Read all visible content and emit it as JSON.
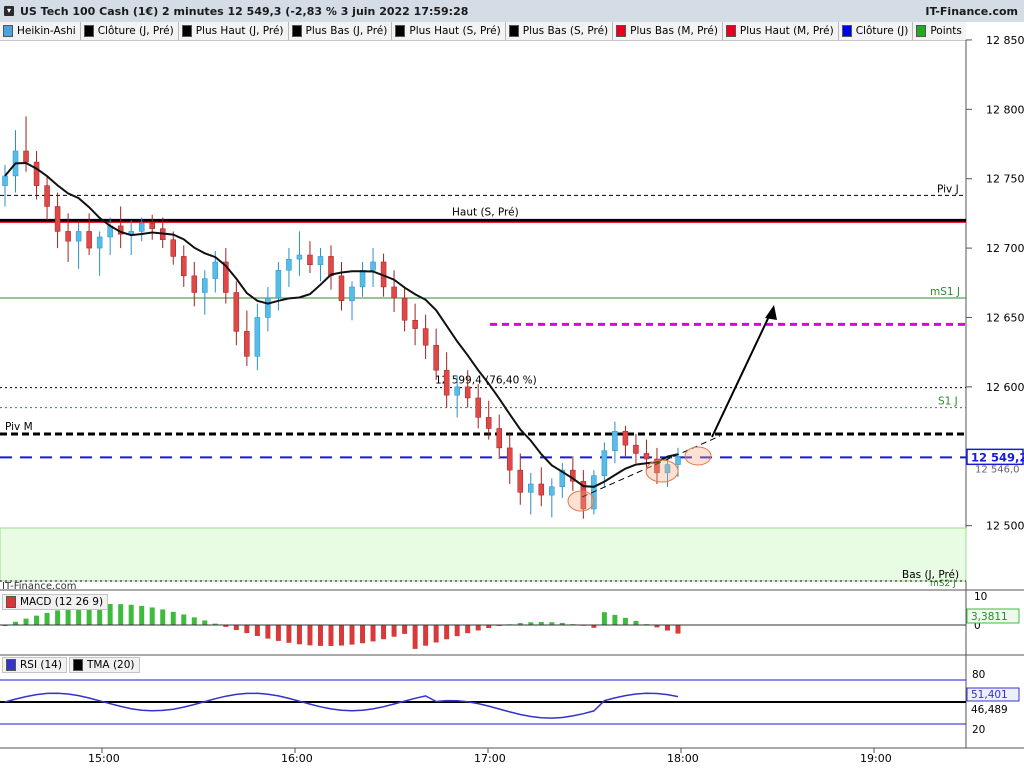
{
  "header": {
    "title": "US Tech 100 Cash (1€) 2 minutes 12 549,3 (-2,83 % 3 juin 2022 17:59:28",
    "brand": "IT-Finance.com"
  },
  "legend": [
    {
      "label": "Heikin-Ashi",
      "color": "#4aa3df"
    },
    {
      "label": "Clôture (J, Pré)",
      "color": "#000000"
    },
    {
      "label": "Plus Haut (J, Pré)",
      "color": "#000000"
    },
    {
      "label": "Plus Bas (J, Pré)",
      "color": "#000000"
    },
    {
      "label": "Plus Haut (S, Pré)",
      "color": "#000000"
    },
    {
      "label": "Plus Bas (S, Pré)",
      "color": "#000000"
    },
    {
      "label": "Plus Bas (M, Pré)",
      "color": "#e8001c"
    },
    {
      "label": "Plus Haut (M, Pré)",
      "color": "#e8001c"
    },
    {
      "label": "Clôture (J)",
      "color": "#0000ee"
    },
    {
      "label": "Points pivots (S)",
      "color": "#22aa22"
    }
  ],
  "macd_legend": {
    "label": "MACD (12 26 9)"
  },
  "rsi_legend": [
    {
      "label": "RSI (14)",
      "color": "#3333cc"
    },
    {
      "label": "TMA (20)",
      "color": "#000000"
    }
  ],
  "watermark": "IT-Finance.com",
  "annotations": {
    "piv_j": "Piv J",
    "haut_s": "Haut (S, Pré)",
    "ms1_j": "mS1 J",
    "s1_j": "S1 J",
    "piv_m": "Piv M",
    "fib": "12 599,4 (76,40 %)",
    "bas_j": "Bas (J, Pré)",
    "ms2_j": "mS2 J"
  },
  "price_axis": {
    "ticks": [
      "12 850",
      "12 800",
      "12 750",
      "12 700",
      "12 650",
      "12 600",
      "12 500"
    ],
    "current_price": "12 549,2",
    "secondary_price": "12 546,0"
  },
  "macd_axis": {
    "ticks": [
      "10",
      "0"
    ],
    "current": "3,3811"
  },
  "rsi_axis": {
    "ticks": [
      "80",
      "20"
    ],
    "rsi_value": "51,401",
    "tma_value": "46,489"
  },
  "time_axis": [
    "15:00",
    "16:00",
    "17:00",
    "18:00",
    "19:00"
  ],
  "chart_data": {
    "type": "candlestick",
    "title": "US Tech 100 Cash (1€) 2 minutes",
    "interval": "2 minutes",
    "date": "3 juin 2022",
    "last": 12549.3,
    "change_pct": -2.83,
    "ylim": [
      12440,
      12855
    ],
    "levels": {
      "Piv J": 12738,
      "Haut (S, Pré)": 12720,
      "mS1 J": 12664,
      "12 599,4 (76,40 %)": 12599.4,
      "S1 J": 12585,
      "Piv M": 12566,
      "Clôture (J)": 12549.2,
      "projection_target": 12645
    },
    "ohlc": [
      [
        12745,
        12760,
        12730,
        12752
      ],
      [
        12752,
        12785,
        12740,
        12770
      ],
      [
        12770,
        12795,
        12755,
        12762
      ],
      [
        12762,
        12770,
        12735,
        12745
      ],
      [
        12745,
        12752,
        12720,
        12730
      ],
      [
        12730,
        12740,
        12700,
        12712
      ],
      [
        12712,
        12725,
        12690,
        12705
      ],
      [
        12705,
        12718,
        12685,
        12712
      ],
      [
        12712,
        12725,
        12695,
        12700
      ],
      [
        12700,
        12712,
        12680,
        12708
      ],
      [
        12708,
        12722,
        12695,
        12716
      ],
      [
        12716,
        12730,
        12700,
        12710
      ],
      [
        12710,
        12720,
        12695,
        12712
      ],
      [
        12712,
        12722,
        12705,
        12718
      ],
      [
        12718,
        12724,
        12706,
        12714
      ],
      [
        12714,
        12722,
        12700,
        12706
      ],
      [
        12706,
        12712,
        12688,
        12694
      ],
      [
        12694,
        12702,
        12672,
        12680
      ],
      [
        12680,
        12690,
        12658,
        12668
      ],
      [
        12668,
        12684,
        12652,
        12678
      ],
      [
        12678,
        12698,
        12668,
        12690
      ],
      [
        12690,
        12700,
        12660,
        12668
      ],
      [
        12668,
        12676,
        12630,
        12640
      ],
      [
        12640,
        12655,
        12615,
        12622
      ],
      [
        12622,
        12660,
        12612,
        12650
      ],
      [
        12650,
        12672,
        12640,
        12664
      ],
      [
        12664,
        12690,
        12655,
        12684
      ],
      [
        12684,
        12700,
        12672,
        12692
      ],
      [
        12692,
        12712,
        12680,
        12695
      ],
      [
        12695,
        12705,
        12682,
        12688
      ],
      [
        12688,
        12700,
        12676,
        12694
      ],
      [
        12694,
        12702,
        12670,
        12680
      ],
      [
        12680,
        12690,
        12655,
        12662
      ],
      [
        12662,
        12676,
        12648,
        12672
      ],
      [
        12672,
        12690,
        12665,
        12684
      ],
      [
        12684,
        12700,
        12672,
        12690
      ],
      [
        12690,
        12696,
        12665,
        12672
      ],
      [
        12672,
        12684,
        12654,
        12664
      ],
      [
        12664,
        12672,
        12640,
        12648
      ],
      [
        12648,
        12660,
        12630,
        12642
      ],
      [
        12642,
        12652,
        12620,
        12630
      ],
      [
        12630,
        12642,
        12605,
        12612
      ],
      [
        12612,
        12625,
        12585,
        12594
      ],
      [
        12594,
        12608,
        12578,
        12600
      ],
      [
        12600,
        12612,
        12585,
        12592
      ],
      [
        12592,
        12602,
        12570,
        12578
      ],
      [
        12578,
        12590,
        12562,
        12570
      ],
      [
        12570,
        12580,
        12548,
        12556
      ],
      [
        12556,
        12566,
        12530,
        12540
      ],
      [
        12540,
        12552,
        12515,
        12524
      ],
      [
        12524,
        12538,
        12508,
        12530
      ],
      [
        12530,
        12542,
        12514,
        12522
      ],
      [
        12522,
        12534,
        12506,
        12528
      ],
      [
        12528,
        12545,
        12520,
        12540
      ],
      [
        12540,
        12550,
        12525,
        12532
      ],
      [
        12532,
        12540,
        12505,
        12512
      ],
      [
        12512,
        12540,
        12508,
        12536
      ],
      [
        12536,
        12560,
        12528,
        12554
      ],
      [
        12554,
        12575,
        12545,
        12568
      ],
      [
        12568,
        12572,
        12550,
        12558
      ],
      [
        12558,
        12566,
        12545,
        12552
      ],
      [
        12552,
        12562,
        12540,
        12548
      ],
      [
        12548,
        12556,
        12530,
        12538
      ],
      [
        12538,
        12548,
        12528,
        12544
      ],
      [
        12544,
        12556,
        12535,
        12550
      ]
    ]
  }
}
